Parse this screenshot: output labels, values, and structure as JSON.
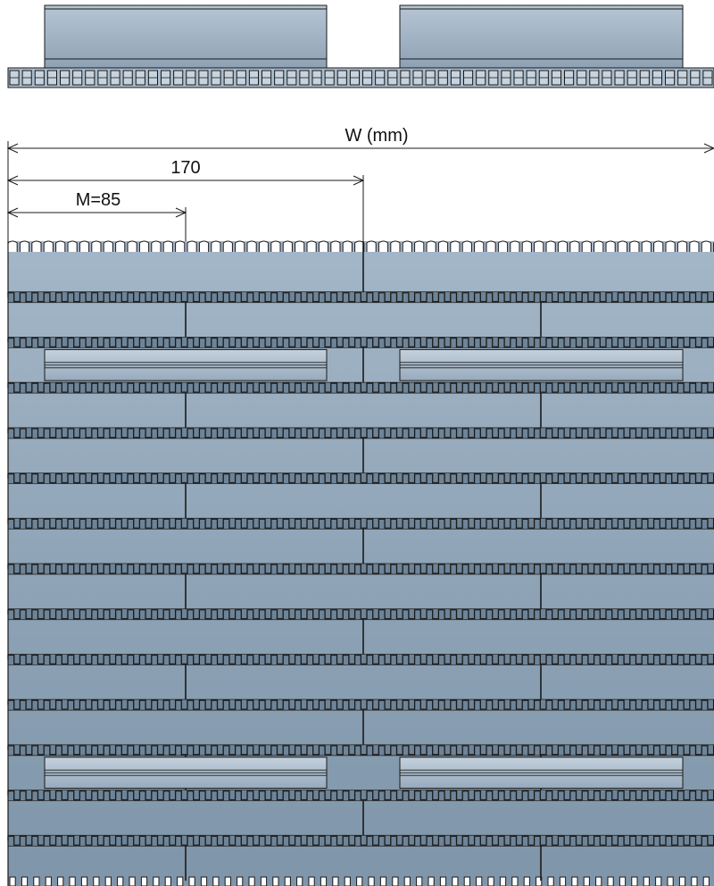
{
  "dimensions": {
    "total_width_label": "W (mm)",
    "pitch_label": "170",
    "module_label": "M=85"
  },
  "belt": {
    "module_width_mm": 85,
    "flight_width_mm": 170,
    "module_rows": 14,
    "flight_rows": [
      2,
      11
    ],
    "colors": {
      "module_fill": "#8a9fb2",
      "module_fill_light": "#a8bccd",
      "flight_fill": "#b4c3d2",
      "outline": "#1a1a1a"
    }
  }
}
